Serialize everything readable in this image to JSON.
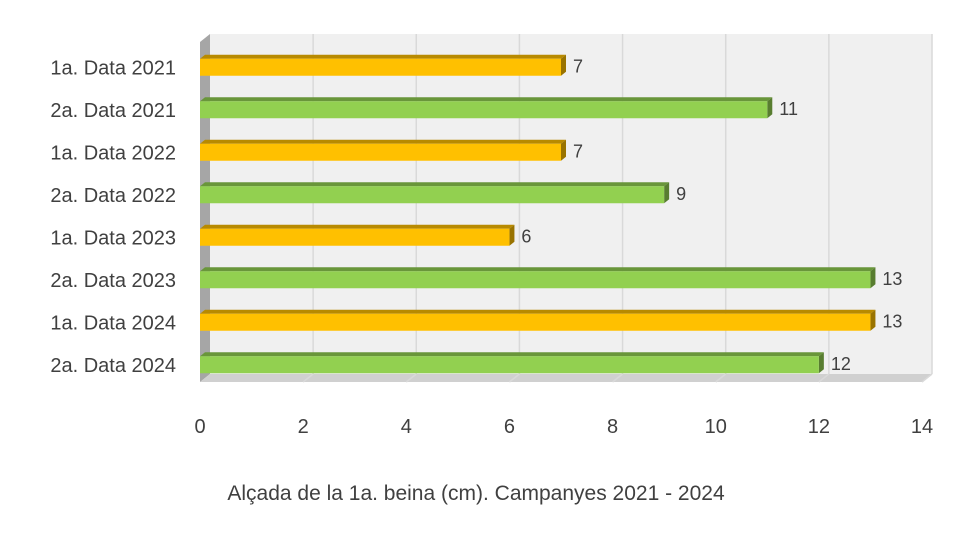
{
  "chart_data": {
    "type": "bar",
    "orientation": "horizontal",
    "style": "3d",
    "categories": [
      "1a. Data 2021",
      "2a. Data 2021",
      "1a. Data 2022",
      "2a. Data 2022",
      "1a. Data 2023",
      "2a. Data 2023",
      "1a. Data 2024",
      "2a. Data 2024"
    ],
    "values": [
      7,
      11,
      7,
      9,
      6,
      13,
      13,
      12
    ],
    "bar_colors": [
      "#FFC000",
      "#92D050",
      "#FFC000",
      "#92D050",
      "#FFC000",
      "#92D050",
      "#FFC000",
      "#92D050"
    ],
    "data_labels": [
      "7",
      "11",
      "7",
      "9",
      "6",
      "13",
      "13",
      "12"
    ],
    "title": "Alçada de la 1a. beina (cm). Campanyes 2021 - 2024",
    "title_position": "bottom",
    "xlabel": "",
    "ylabel": "",
    "xlim": [
      0,
      14
    ],
    "xticks": [
      0,
      2,
      4,
      6,
      8,
      10,
      12,
      14
    ],
    "grid": true,
    "legend": false,
    "colors": {
      "series_a": "#FFC000",
      "series_b": "#92D050",
      "wall": "#F0F0F0",
      "wall_side": "#A6A6A6",
      "gridline": "#D9D9D9",
      "text": "#404040"
    }
  }
}
